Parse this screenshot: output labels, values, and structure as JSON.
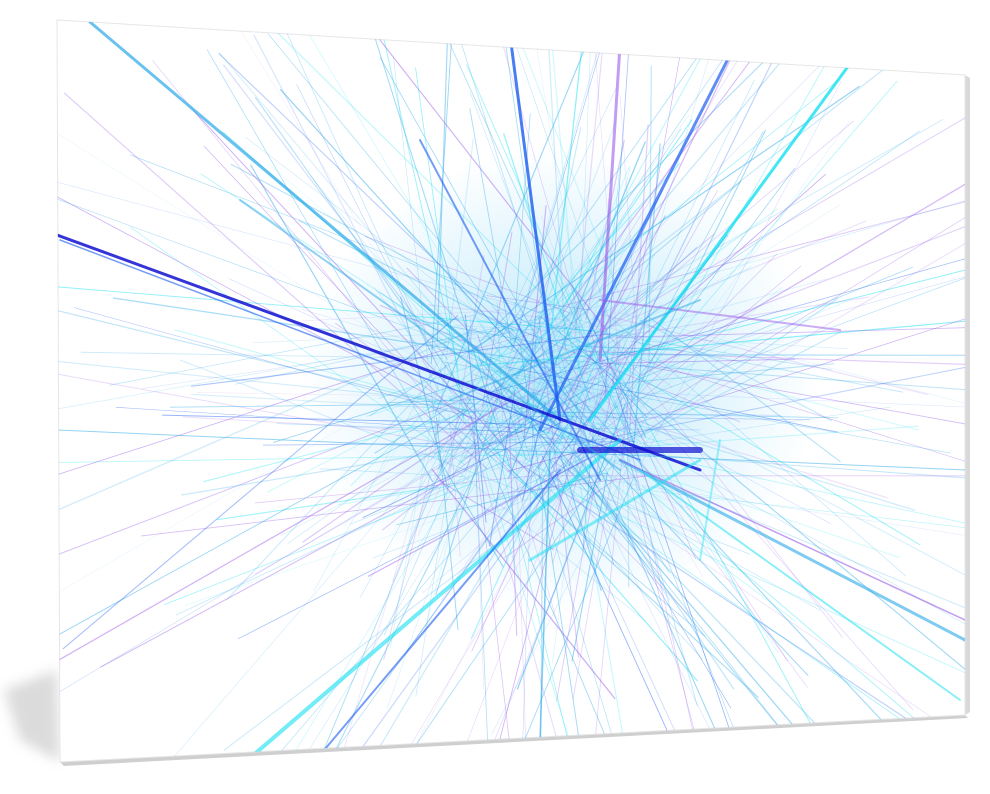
{
  "image": {
    "subject": "canvas-print-abstract-fractal",
    "colors": {
      "background": "#ffffff",
      "canvas": "#ffffff",
      "edge_shade": "#d9d9d9",
      "shadow": "#9a9a9a",
      "blue": "#1a5cf0",
      "deep_blue": "#1010d0",
      "sky": "#2aa8e8",
      "cyan": "#14e0f0",
      "violet": "#9a5ce8"
    }
  }
}
